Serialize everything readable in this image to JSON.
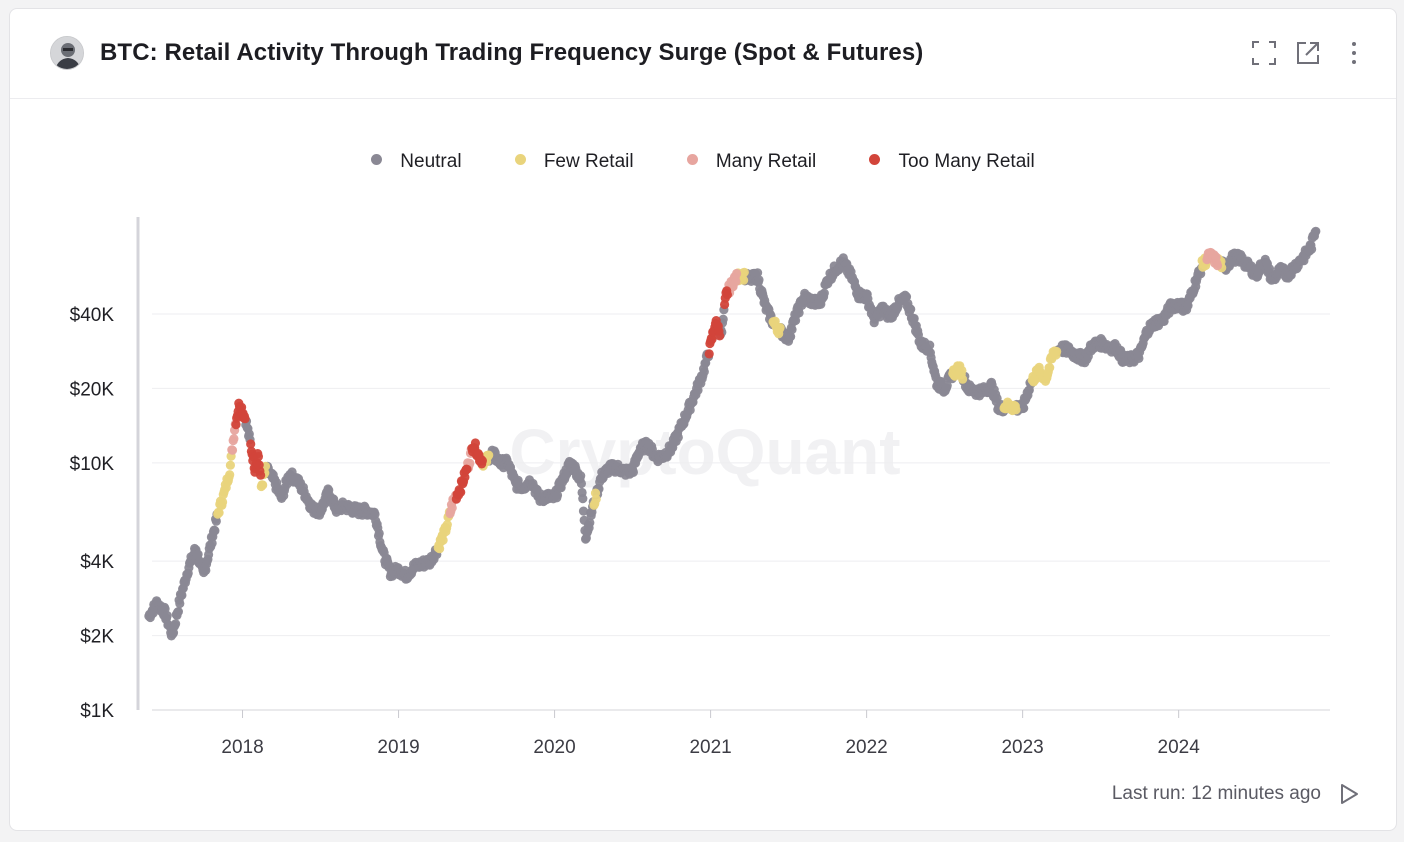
{
  "header": {
    "title": "BTC: Retail Activity Through Trading Frequency Surge (Spot & Futures)"
  },
  "icons": [
    "avatar",
    "fullscreen-icon",
    "open-external-icon",
    "more-vertical-icon",
    "play-icon"
  ],
  "footer": {
    "last_run": "Last run: 12 minutes ago"
  },
  "watermark": "CryptoQuant",
  "chart_data": {
    "type": "scatter",
    "title": "BTC: Retail Activity Through Trading Frequency Surge (Spot & Futures)",
    "xlabel": "",
    "ylabel": "",
    "y_scale": "log",
    "ylim": [
      1000,
      100000
    ],
    "xlim": [
      "2017-05",
      "2024-12"
    ],
    "grid": true,
    "legend_position": "top-center",
    "x_ticks": [
      {
        "value": 2018,
        "label": "2018"
      },
      {
        "value": 2019,
        "label": "2019"
      },
      {
        "value": 2020,
        "label": "2020"
      },
      {
        "value": 2021,
        "label": "2021"
      },
      {
        "value": 2022,
        "label": "2022"
      },
      {
        "value": 2023,
        "label": "2023"
      },
      {
        "value": 2024,
        "label": "2024"
      }
    ],
    "y_ticks": [
      {
        "value": 1000,
        "label": "$1K"
      },
      {
        "value": 2000,
        "label": "$2K"
      },
      {
        "value": 4000,
        "label": "$4K"
      },
      {
        "value": 10000,
        "label": "$10K"
      },
      {
        "value": 20000,
        "label": "$20K"
      },
      {
        "value": 40000,
        "label": "$40K"
      }
    ],
    "series": [
      {
        "name": "Neutral",
        "color": "#8a8894"
      },
      {
        "name": "Few Retail",
        "color": "#e9d47c"
      },
      {
        "name": "Many Retail",
        "color": "#e7a59f"
      },
      {
        "name": "Too Many Retail",
        "color": "#d2453a"
      }
    ],
    "price": [
      [
        2017.4,
        2400
      ],
      [
        2017.45,
        2700
      ],
      [
        2017.5,
        2500
      ],
      [
        2017.55,
        2000
      ],
      [
        2017.6,
        2800
      ],
      [
        2017.65,
        3700
      ],
      [
        2017.7,
        4500
      ],
      [
        2017.75,
        3500
      ],
      [
        2017.8,
        4800
      ],
      [
        2017.85,
        6500
      ],
      [
        2017.88,
        7400
      ],
      [
        2017.92,
        9500
      ],
      [
        2017.95,
        14000
      ],
      [
        2017.98,
        17500
      ],
      [
        2018.02,
        15000
      ],
      [
        2018.05,
        12000
      ],
      [
        2018.08,
        9500
      ],
      [
        2018.1,
        11000
      ],
      [
        2018.12,
        8000
      ],
      [
        2018.15,
        9500
      ],
      [
        2018.2,
        8500
      ],
      [
        2018.25,
        7200
      ],
      [
        2018.3,
        9000
      ],
      [
        2018.35,
        8500
      ],
      [
        2018.4,
        7500
      ],
      [
        2018.45,
        6500
      ],
      [
        2018.5,
        6400
      ],
      [
        2018.55,
        7600
      ],
      [
        2018.6,
        6500
      ],
      [
        2018.65,
        6700
      ],
      [
        2018.7,
        6500
      ],
      [
        2018.75,
        6400
      ],
      [
        2018.8,
        6400
      ],
      [
        2018.85,
        6200
      ],
      [
        2018.9,
        4300
      ],
      [
        2018.95,
        3600
      ],
      [
        2019.0,
        3700
      ],
      [
        2019.05,
        3500
      ],
      [
        2019.1,
        3800
      ],
      [
        2019.15,
        3900
      ],
      [
        2019.2,
        4000
      ],
      [
        2019.25,
        4500
      ],
      [
        2019.3,
        5300
      ],
      [
        2019.35,
        7000
      ],
      [
        2019.4,
        8000
      ],
      [
        2019.45,
        10000
      ],
      [
        2019.48,
        12000
      ],
      [
        2019.52,
        10500
      ],
      [
        2019.55,
        10000
      ],
      [
        2019.6,
        11000
      ],
      [
        2019.65,
        10000
      ],
      [
        2019.7,
        10000
      ],
      [
        2019.75,
        8200
      ],
      [
        2019.8,
        8000
      ],
      [
        2019.85,
        8500
      ],
      [
        2019.9,
        7200
      ],
      [
        2019.95,
        7300
      ],
      [
        2020.0,
        7200
      ],
      [
        2020.05,
        8500
      ],
      [
        2020.1,
        10000
      ],
      [
        2020.13,
        9500
      ],
      [
        2020.17,
        8500
      ],
      [
        2020.2,
        5000
      ],
      [
        2020.25,
        6800
      ],
      [
        2020.3,
        8800
      ],
      [
        2020.35,
        9500
      ],
      [
        2020.4,
        9600
      ],
      [
        2020.45,
        9200
      ],
      [
        2020.5,
        9300
      ],
      [
        2020.55,
        11500
      ],
      [
        2020.6,
        11800
      ],
      [
        2020.65,
        10500
      ],
      [
        2020.7,
        10700
      ],
      [
        2020.75,
        11500
      ],
      [
        2020.8,
        13500
      ],
      [
        2020.85,
        16000
      ],
      [
        2020.9,
        19000
      ],
      [
        2020.95,
        23000
      ],
      [
        2021.0,
        30000
      ],
      [
        2021.03,
        37000
      ],
      [
        2021.07,
        33000
      ],
      [
        2021.1,
        48000
      ],
      [
        2021.15,
        55000
      ],
      [
        2021.2,
        58000
      ],
      [
        2021.25,
        55000
      ],
      [
        2021.3,
        57000
      ],
      [
        2021.35,
        43000
      ],
      [
        2021.4,
        37000
      ],
      [
        2021.45,
        34000
      ],
      [
        2021.5,
        32000
      ],
      [
        2021.55,
        40000
      ],
      [
        2021.6,
        47000
      ],
      [
        2021.65,
        45000
      ],
      [
        2021.7,
        44000
      ],
      [
        2021.75,
        55000
      ],
      [
        2021.8,
        61000
      ],
      [
        2021.85,
        65000
      ],
      [
        2021.9,
        57000
      ],
      [
        2021.95,
        48000
      ],
      [
        2022.0,
        47000
      ],
      [
        2022.05,
        38000
      ],
      [
        2022.1,
        42000
      ],
      [
        2022.15,
        39000
      ],
      [
        2022.2,
        44000
      ],
      [
        2022.25,
        46000
      ],
      [
        2022.3,
        38000
      ],
      [
        2022.35,
        30000
      ],
      [
        2022.4,
        29500
      ],
      [
        2022.45,
        21000
      ],
      [
        2022.5,
        20000
      ],
      [
        2022.55,
        23000
      ],
      [
        2022.6,
        24000
      ],
      [
        2022.65,
        20000
      ],
      [
        2022.7,
        19500
      ],
      [
        2022.75,
        19500
      ],
      [
        2022.8,
        20500
      ],
      [
        2022.85,
        16500
      ],
      [
        2022.9,
        17000
      ],
      [
        2022.95,
        16800
      ],
      [
        2023.0,
        16600
      ],
      [
        2023.05,
        21000
      ],
      [
        2023.1,
        23500
      ],
      [
        2023.15,
        22000
      ],
      [
        2023.2,
        28000
      ],
      [
        2023.25,
        29000
      ],
      [
        2023.3,
        28500
      ],
      [
        2023.35,
        27000
      ],
      [
        2023.4,
        26500
      ],
      [
        2023.45,
        30000
      ],
      [
        2023.5,
        30500
      ],
      [
        2023.55,
        29500
      ],
      [
        2023.6,
        29200
      ],
      [
        2023.65,
        26000
      ],
      [
        2023.7,
        26300
      ],
      [
        2023.75,
        27500
      ],
      [
        2023.8,
        34500
      ],
      [
        2023.85,
        37000
      ],
      [
        2023.9,
        38000
      ],
      [
        2023.95,
        43000
      ],
      [
        2024.0,
        44000
      ],
      [
        2024.05,
        42000
      ],
      [
        2024.1,
        52000
      ],
      [
        2024.15,
        63000
      ],
      [
        2024.2,
        69000
      ],
      [
        2024.25,
        65000
      ],
      [
        2024.3,
        62000
      ],
      [
        2024.35,
        68000
      ],
      [
        2024.4,
        67000
      ],
      [
        2024.45,
        62000
      ],
      [
        2024.5,
        58000
      ],
      [
        2024.55,
        66000
      ],
      [
        2024.6,
        55000
      ],
      [
        2024.65,
        60000
      ],
      [
        2024.7,
        58000
      ],
      [
        2024.75,
        63000
      ],
      [
        2024.8,
        68000
      ],
      [
        2024.85,
        75000
      ],
      [
        2024.88,
        90000
      ]
    ],
    "class_ranges": [
      {
        "from": 2017.84,
        "to": 2017.93,
        "class": "Few Retail"
      },
      {
        "from": 2017.93,
        "to": 2017.955,
        "class": "Many Retail"
      },
      {
        "from": 2017.955,
        "to": 2018.02,
        "class": "Too Many Retail"
      },
      {
        "from": 2018.05,
        "to": 2018.12,
        "class": "Too Many Retail"
      },
      {
        "from": 2018.12,
        "to": 2018.15,
        "class": "Few Retail"
      },
      {
        "from": 2019.25,
        "to": 2019.33,
        "class": "Few Retail"
      },
      {
        "from": 2019.33,
        "to": 2019.37,
        "class": "Many Retail"
      },
      {
        "from": 2019.37,
        "to": 2019.44,
        "class": "Too Many Retail"
      },
      {
        "from": 2019.44,
        "to": 2019.47,
        "class": "Many Retail"
      },
      {
        "from": 2019.47,
        "to": 2019.54,
        "class": "Too Many Retail"
      },
      {
        "from": 2019.54,
        "to": 2019.58,
        "class": "Few Retail"
      },
      {
        "from": 2020.25,
        "to": 2020.27,
        "class": "Few Retail"
      },
      {
        "from": 2020.99,
        "to": 2021.06,
        "class": "Too Many Retail"
      },
      {
        "from": 2021.09,
        "to": 2021.11,
        "class": "Too Many Retail"
      },
      {
        "from": 2021.11,
        "to": 2021.17,
        "class": "Many Retail"
      },
      {
        "from": 2021.17,
        "to": 2021.22,
        "class": "Few Retail"
      },
      {
        "from": 2021.4,
        "to": 2021.45,
        "class": "Few Retail"
      },
      {
        "from": 2022.55,
        "to": 2022.62,
        "class": "Few Retail"
      },
      {
        "from": 2022.88,
        "to": 2022.96,
        "class": "Few Retail"
      },
      {
        "from": 2023.06,
        "to": 2023.22,
        "class": "Few Retail"
      },
      {
        "from": 2024.15,
        "to": 2024.18,
        "class": "Few Retail"
      },
      {
        "from": 2024.18,
        "to": 2024.25,
        "class": "Many Retail"
      },
      {
        "from": 2024.25,
        "to": 2024.28,
        "class": "Few Retail"
      }
    ]
  }
}
